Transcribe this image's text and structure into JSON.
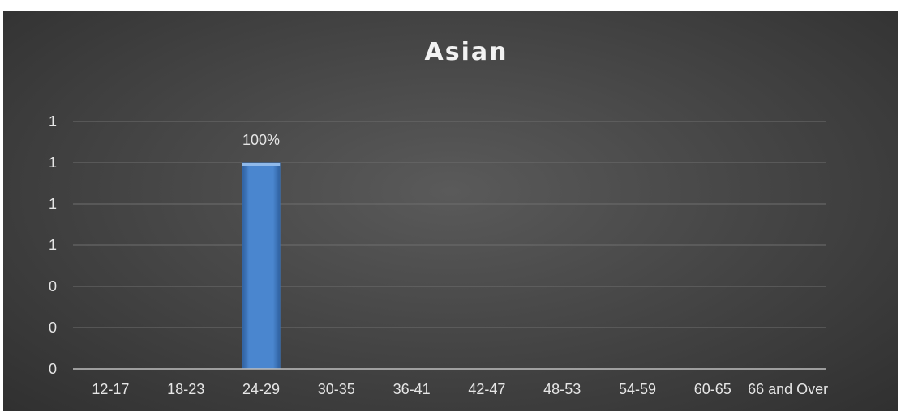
{
  "chart_data": {
    "type": "bar",
    "title": "Asian",
    "xlabel": "",
    "ylabel": "",
    "categories": [
      "12-17",
      "18-23",
      "24-29",
      "30-35",
      "36-41",
      "42-47",
      "48-53",
      "54-59",
      "60-65",
      "66 and Over"
    ],
    "values": [
      0,
      0,
      1,
      0,
      0,
      0,
      0,
      0,
      0,
      0
    ],
    "data_labels": [
      "",
      "",
      "100%",
      "",
      "",
      "",
      "",
      "",
      "",
      ""
    ],
    "ylim": [
      0,
      1.2
    ],
    "ytick_values": [
      0,
      0.2,
      0.4,
      0.6,
      0.8,
      1.0,
      1.2
    ],
    "ytick_labels": [
      "0",
      "0",
      "0",
      "1",
      "1",
      "1",
      "1"
    ],
    "grid": true,
    "legend": "none",
    "colors": {
      "bar": "#4a86cf",
      "bar_dark": "#2e5f9e",
      "grid": "#6e6e6e",
      "axis": "#bfbfbf",
      "text": "#e6e6e6"
    }
  }
}
